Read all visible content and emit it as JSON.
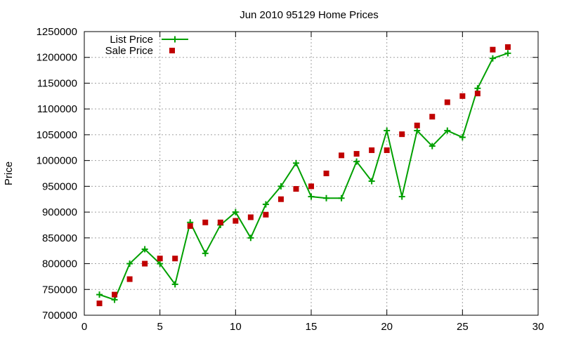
{
  "chart_data": {
    "type": "line",
    "title": "Jun 2010 95129 Home Prices",
    "xlabel": "",
    "ylabel": "Price",
    "xlim": [
      0,
      30
    ],
    "ylim": [
      700000,
      1250000
    ],
    "xticks": [
      0,
      5,
      10,
      15,
      20,
      25,
      30
    ],
    "yticks": [
      700000,
      750000,
      800000,
      850000,
      900000,
      950000,
      1000000,
      1050000,
      1100000,
      1150000,
      1200000,
      1250000
    ],
    "grid": true,
    "legend_position": "top-left",
    "series": [
      {
        "name": "List Price",
        "style": "linespoints",
        "marker": "plus",
        "color": "#00a000",
        "x": [
          1,
          2,
          3,
          4,
          5,
          6,
          7,
          8,
          9,
          10,
          11,
          12,
          13,
          14,
          15,
          16,
          17,
          18,
          19,
          20,
          21,
          22,
          23,
          24,
          25,
          26,
          27,
          28
        ],
        "y": [
          740000,
          730000,
          800000,
          828000,
          800000,
          760000,
          880000,
          820000,
          875000,
          900000,
          850000,
          915000,
          950000,
          995000,
          930000,
          927000,
          927000,
          998000,
          960000,
          1058000,
          930000,
          1058000,
          1028000,
          1058000,
          1045000,
          1140000,
          1198000,
          1208000
        ]
      },
      {
        "name": "Sale Price",
        "style": "points",
        "marker": "square",
        "color": "#c00000",
        "x": [
          1,
          2,
          3,
          4,
          5,
          6,
          7,
          8,
          9,
          10,
          11,
          12,
          13,
          14,
          15,
          16,
          17,
          18,
          19,
          20,
          21,
          22,
          23,
          24,
          25,
          26,
          27,
          28
        ],
        "y": [
          723000,
          740000,
          770000,
          800000,
          810000,
          810000,
          873000,
          880000,
          880000,
          883000,
          890000,
          895000,
          925000,
          945000,
          950000,
          975000,
          1010000,
          1013000,
          1020000,
          1020000,
          1051000,
          1068000,
          1085000,
          1113000,
          1125000,
          1130000,
          1215000,
          1220000
        ]
      }
    ]
  }
}
